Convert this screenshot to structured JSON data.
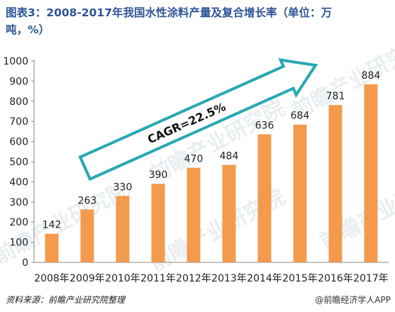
{
  "chart_data": {
    "type": "bar",
    "title_line1": "图表3：2008-2017年我国水性涂料产量及复合增长率（单位：万",
    "title_line2": "吨，%）",
    "categories": [
      "2008年",
      "2009年",
      "2010年",
      "2011年",
      "2012年",
      "2013年",
      "2014年",
      "2015年",
      "2016年",
      "2017年"
    ],
    "values": [
      142,
      263,
      330,
      390,
      470,
      484,
      636,
      684,
      781,
      884
    ],
    "ylim": [
      0,
      1000
    ],
    "yticks": [
      0,
      100,
      200,
      300,
      400,
      500,
      600,
      700,
      800,
      900,
      1000
    ],
    "xlabel": "",
    "ylabel": "",
    "grid": false,
    "legend": "none",
    "annotation": "CAGR=22.5%",
    "bar_color": "#f39a4d",
    "arrow_color": "#28a8b3"
  },
  "footer": {
    "source": "资料来源：前瞻产业研究院整理",
    "brand": "@前瞻经济学人APP"
  },
  "watermark": {
    "text": "前瞻产业研究院"
  }
}
